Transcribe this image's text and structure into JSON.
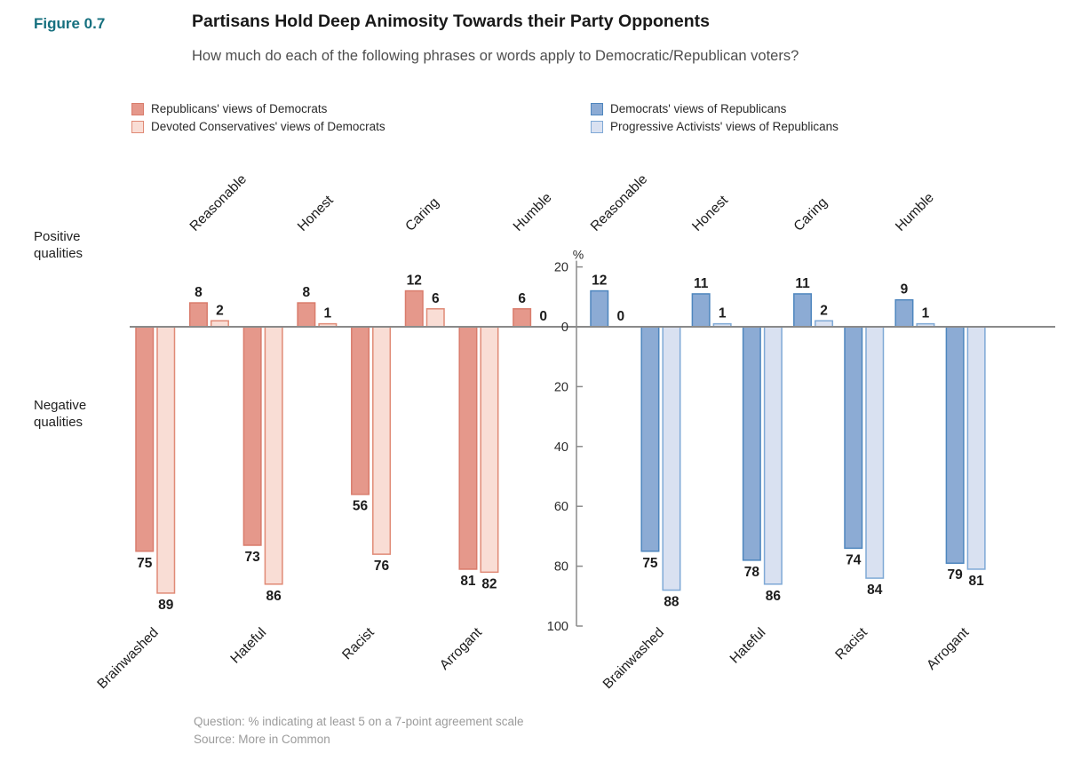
{
  "figure_label": "Figure 0.7",
  "title": "Partisans Hold Deep Animosity Towards their Party Opponents",
  "subtitle": "How much do each of the following phrases or words apply to Democratic/Republican voters?",
  "side_labels": {
    "positive": "Positive qualities",
    "negative": "Negative qualities"
  },
  "legend": {
    "left": [
      {
        "label": "Republicans' views of Democrats",
        "fill": "#E5988B",
        "border": "#D97C6C"
      },
      {
        "label": "Devoted Conservatives' views of Democrats",
        "fill": "#F9DDD5",
        "border": "#E08A76"
      }
    ],
    "right": [
      {
        "label": "Democrats' views of Republicans",
        "fill": "#8CABD4",
        "border": "#4E86BE"
      },
      {
        "label": "Progressive Activists' views of Republicans",
        "fill": "#D9E1F1",
        "border": "#7FA9D6"
      }
    ]
  },
  "footnote": {
    "question": "Question: % indicating at least 5 on a 7-point agreement scale",
    "source": "Source: More in Common"
  },
  "colors": {
    "figure_label": "#16707F",
    "axis": "#8a8a8a",
    "text": "#1c1c1c",
    "footnote": "#9b9b9b"
  },
  "chart_data": {
    "type": "bar",
    "orientation": "diverging-vertical",
    "unit": "%",
    "ylim": [
      -100,
      20
    ],
    "axis_ticks": [
      {
        "label": "20",
        "value": 20
      },
      {
        "label": "0",
        "value": 0
      },
      {
        "label": "20",
        "value": -20
      },
      {
        "label": "40",
        "value": -40
      },
      {
        "label": "60",
        "value": -60
      },
      {
        "label": "80",
        "value": -80
      },
      {
        "label": "100",
        "value": -100
      }
    ],
    "positive_categories": [
      "Reasonable",
      "Honest",
      "Caring",
      "Humble"
    ],
    "negative_categories": [
      "Brainwashed",
      "Hateful",
      "Racist",
      "Arrogant"
    ],
    "panels": [
      {
        "id": "left",
        "legend": "left",
        "series_names": [
          "Republicans' views of Democrats",
          "Devoted Conservatives' views of Democrats"
        ],
        "groups": [
          {
            "category": "Brainwashed",
            "polarity": "negative",
            "values": [
              75,
              89
            ]
          },
          {
            "category": "Reasonable",
            "polarity": "positive",
            "values": [
              8,
              2
            ]
          },
          {
            "category": "Hateful",
            "polarity": "negative",
            "values": [
              73,
              86
            ]
          },
          {
            "category": "Honest",
            "polarity": "positive",
            "values": [
              8,
              1
            ]
          },
          {
            "category": "Racist",
            "polarity": "negative",
            "values": [
              56,
              76
            ]
          },
          {
            "category": "Caring",
            "polarity": "positive",
            "values": [
              12,
              6
            ]
          },
          {
            "category": "Arrogant",
            "polarity": "negative",
            "values": [
              81,
              82
            ]
          },
          {
            "category": "Humble",
            "polarity": "positive",
            "values": [
              6,
              0
            ]
          }
        ]
      },
      {
        "id": "right",
        "legend": "right",
        "series_names": [
          "Democrats' views of Republicans",
          "Progressive Activists' views of Republicans"
        ],
        "groups": [
          {
            "category": "Reasonable",
            "polarity": "positive",
            "values": [
              12,
              0
            ]
          },
          {
            "category": "Brainwashed",
            "polarity": "negative",
            "values": [
              75,
              88
            ]
          },
          {
            "category": "Honest",
            "polarity": "positive",
            "values": [
              11,
              1
            ]
          },
          {
            "category": "Hateful",
            "polarity": "negative",
            "values": [
              78,
              86
            ]
          },
          {
            "category": "Caring",
            "polarity": "positive",
            "values": [
              11,
              2
            ]
          },
          {
            "category": "Racist",
            "polarity": "negative",
            "values": [
              74,
              84
            ]
          },
          {
            "category": "Humble",
            "polarity": "positive",
            "values": [
              9,
              1
            ]
          },
          {
            "category": "Arrogant",
            "polarity": "negative",
            "values": [
              79,
              81
            ]
          }
        ]
      }
    ]
  }
}
